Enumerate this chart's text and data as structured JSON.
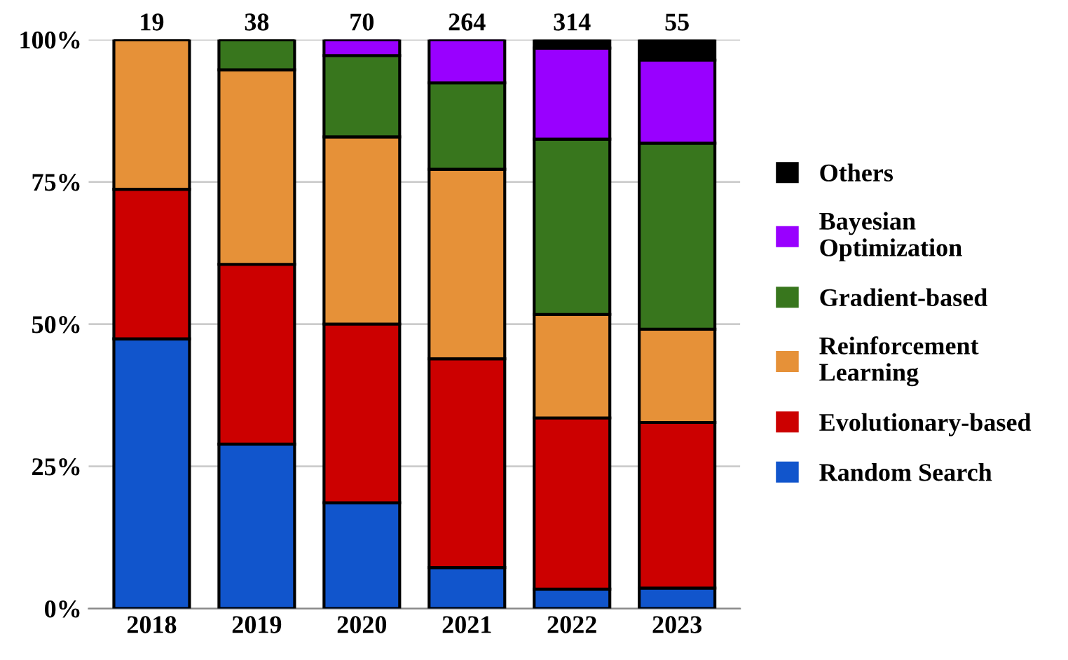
{
  "chart_data": {
    "type": "bar",
    "stacked": true,
    "categories": [
      "2018",
      "2019",
      "2020",
      "2021",
      "2022",
      "2023"
    ],
    "series": [
      {
        "name": "Random Search",
        "color": "#1155cc",
        "values": [
          47.4,
          28.9,
          18.6,
          7.2,
          3.4,
          3.6
        ]
      },
      {
        "name": "Evolutionary-based",
        "color": "#cc0000",
        "values": [
          26.3,
          31.6,
          31.4,
          36.7,
          30.1,
          29.1
        ]
      },
      {
        "name": "Reinforcement Learning",
        "color": "#e69138",
        "values": [
          26.3,
          34.2,
          32.9,
          33.3,
          18.2,
          16.4
        ]
      },
      {
        "name": "Gradient-based",
        "color": "#38761d",
        "values": [
          0,
          5.3,
          14.3,
          15.2,
          30.8,
          32.7
        ]
      },
      {
        "name": "Bayesian Optimization",
        "color": "#9900ff",
        "values": [
          0,
          0,
          2.8,
          7.6,
          16.0,
          14.6
        ]
      },
      {
        "name": "Others",
        "color": "#000000",
        "values": [
          0,
          0,
          0,
          0,
          1.5,
          3.6
        ]
      }
    ],
    "annotations": [
      {
        "text": "19",
        "x": "2018",
        "y": 100
      },
      {
        "text": "38",
        "x": "2019",
        "y": 100
      },
      {
        "text": "70",
        "x": "2020",
        "y": 100
      },
      {
        "text": "264",
        "x": "2021",
        "y": 100
      },
      {
        "text": "314",
        "x": "2022",
        "y": 100
      },
      {
        "text": "55",
        "x": "2023",
        "y": 100
      }
    ],
    "ylim": [
      0,
      100
    ],
    "yticks": [
      {
        "value": 0,
        "label": "0%"
      },
      {
        "value": 25,
        "label": "25%"
      },
      {
        "value": 50,
        "label": "50%"
      },
      {
        "value": 75,
        "label": "75%"
      },
      {
        "value": 100,
        "label": "100%"
      }
    ],
    "grid": "y",
    "legend": "right"
  }
}
